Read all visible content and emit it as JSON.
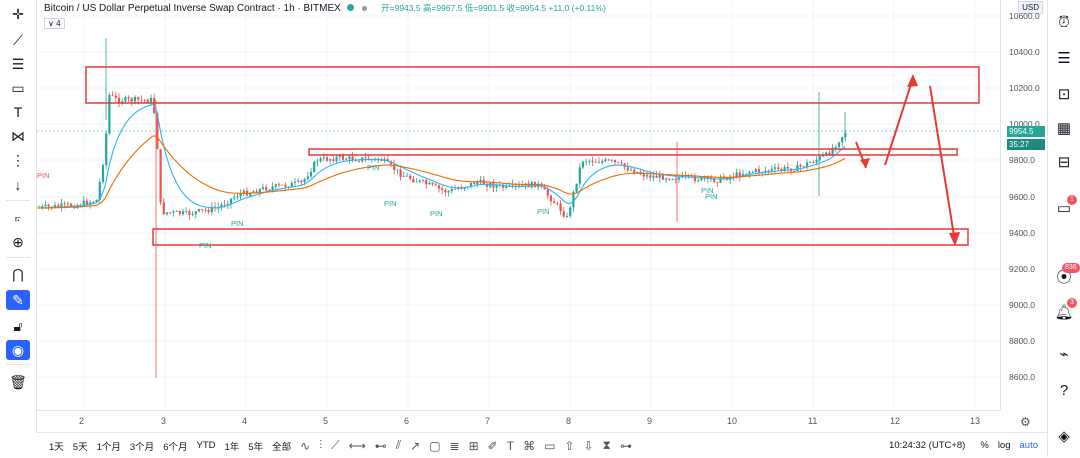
{
  "header": {
    "title": "Bitcoin / US Dollar Perpetual Inverse Swap Contract · 1h · BITMEX",
    "ohlc": "开=9943.5  高=9967.5  低=9901.5  收=9954.5 +11.0 (+0.11%)"
  },
  "indicator_toggle": "∨ 4",
  "price_axis": {
    "currency": "USD",
    "ticks": [
      "10600.0",
      "10400.0",
      "10200.0",
      "10000.0",
      "9800.0",
      "9600.0",
      "9400.0",
      "9200.0",
      "9000.0",
      "8800.0",
      "8600.0"
    ],
    "last_price": "9954.5",
    "countdown": "35:27"
  },
  "time_axis": {
    "ticks": [
      "2",
      "3",
      "4",
      "5",
      "6",
      "7",
      "8",
      "9",
      "10",
      "11",
      "12",
      "13"
    ]
  },
  "bottom_bar": {
    "ranges": [
      "1天",
      "5天",
      "1个月",
      "3个月",
      "6个月",
      "YTD",
      "1年",
      "5年",
      "全部"
    ],
    "clock": "10:24:32 (UTC+8)",
    "percent": "%",
    "log": "log",
    "auto": "auto"
  },
  "chart_labels": [
    "PIN",
    "PIN",
    "PIN",
    "PIN",
    "PIN",
    "PIN",
    "PIN",
    "PIN",
    "PIN"
  ],
  "right_toolbar": {
    "badges": [
      "1",
      "836",
      "3"
    ]
  },
  "colors": {
    "up": "#26a69a",
    "down": "#ef5350",
    "box": "#e53935",
    "ma_fast": "#29b6f6",
    "ma_slow": "#ef6c00"
  }
}
